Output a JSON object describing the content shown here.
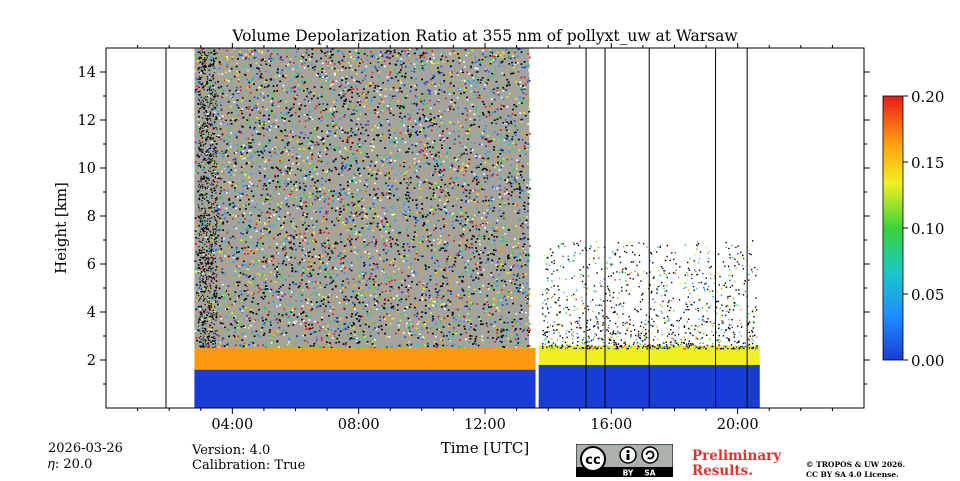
{
  "chart_data": {
    "type": "heatmap",
    "title": "Volume Depolarization Ratio at 355 nm of pollyxt_uw at Warsaw",
    "xlabel": "Time [UTC]",
    "ylabel": "Height [km]",
    "xlim": [
      0,
      24
    ],
    "ylim": [
      0,
      15
    ],
    "xticks": [
      4,
      8,
      12,
      16,
      20
    ],
    "xtick_labels": [
      "04:00",
      "08:00",
      "12:00",
      "16:00",
      "20:00"
    ],
    "yticks": [
      2,
      4,
      6,
      8,
      10,
      12,
      14
    ],
    "ytick_labels": [
      "2",
      "4",
      "6",
      "8",
      "10",
      "12",
      "14"
    ],
    "colorbar": {
      "range": [
        0.0,
        0.2
      ],
      "ticks": [
        "0.00",
        "0.05",
        "0.10",
        "0.15",
        "0.20"
      ],
      "colormap": [
        "#1a3cd6",
        "#1e90ff",
        "#19c8c8",
        "#3cd23c",
        "#f0f020",
        "#ff9a10",
        "#e81818"
      ]
    },
    "regions": [
      {
        "name": "boundary-layer",
        "t_start": 2.8,
        "t_end": 13.6,
        "h_top": 1.6,
        "depol": 0.01
      },
      {
        "name": "boundary-layer-afternoon",
        "t_start": 13.7,
        "t_end": 20.7,
        "h_top": 1.8,
        "depol": 0.01
      },
      {
        "name": "aerosol-top-morning",
        "t_start": 2.8,
        "t_end": 13.6,
        "h_bottom": 1.6,
        "h_top": 2.5,
        "depol": 0.17
      },
      {
        "name": "aerosol-top-afternoon",
        "t_start": 13.7,
        "t_end": 20.7,
        "h_bottom": 1.8,
        "h_top": 2.6,
        "depol": 0.12
      },
      {
        "name": "noise-high",
        "t_start": 2.8,
        "t_end": 13.4,
        "h_bottom": 2.5,
        "h_top": 15,
        "depol": "noisy"
      }
    ],
    "vertical_lines": [
      1.9,
      15.2,
      15.8,
      17.2,
      19.3,
      20.3
    ]
  },
  "meta": {
    "date": "2026-03-26",
    "eta": "𝜂: 20.0",
    "version": "Version: 4.0",
    "calibration": "Calibration: True",
    "preliminary_line1": "Preliminary",
    "preliminary_line2": "Results.",
    "copyright_line1": "© TROPOS & UW 2026.",
    "copyright_line2": "CC BY SA 4.0 License.",
    "cc_by": "BY",
    "cc_sa": "SA"
  }
}
